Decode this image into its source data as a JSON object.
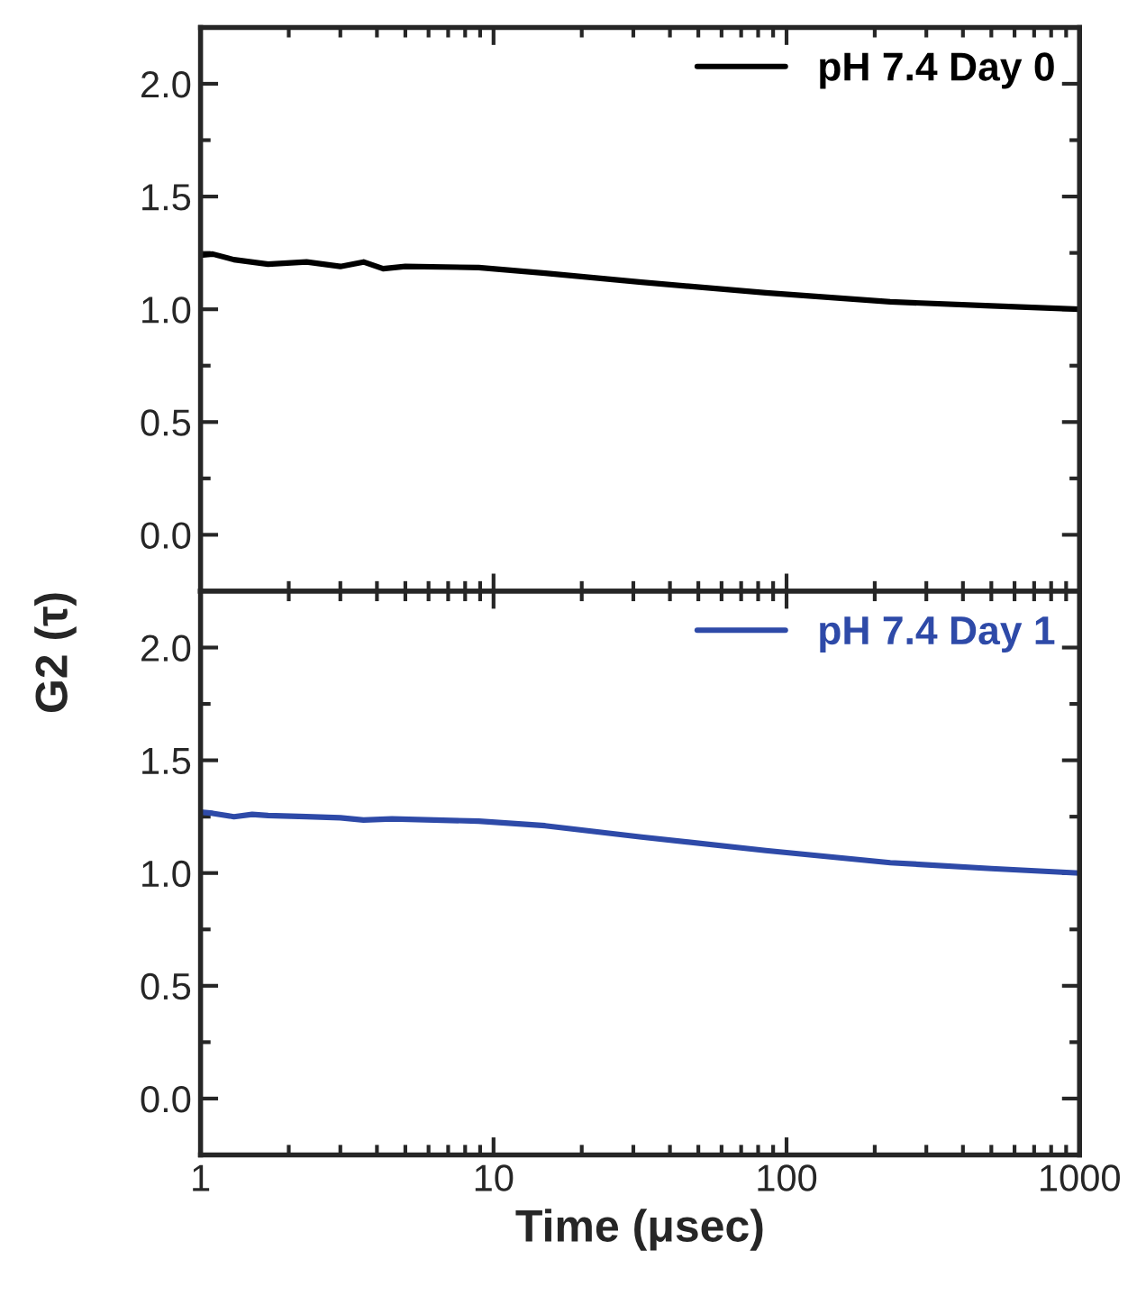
{
  "chart_data": [
    {
      "type": "line",
      "ylabel": "G2 (τ)",
      "log": "x",
      "xlim": [
        1,
        1000
      ],
      "xticks": [
        1,
        10,
        100,
        1000
      ],
      "ylim": [
        -0.25,
        2.25
      ],
      "yticks": [
        {
          "value": 0,
          "label": "0.0"
        },
        {
          "value": 0.5,
          "label": "0.5"
        },
        {
          "value": 1,
          "label": "1.0"
        },
        {
          "value": 1.5,
          "label": "1.5"
        },
        {
          "value": 2,
          "label": "2.0"
        }
      ],
      "tick_labels": "y",
      "legend": "top right",
      "grid": false,
      "series": [
        {
          "name": "pH 7.4 Day 0",
          "color": "#000000",
          "x": [
            1,
            1.1,
            1.3,
            1.7,
            2.3,
            3,
            3.6,
            4.2,
            5,
            8.9,
            15,
            32,
            85,
            226,
            500,
            1000
          ],
          "values": [
            1.24,
            1.245,
            1.22,
            1.2,
            1.21,
            1.19,
            1.21,
            1.18,
            1.19,
            1.185,
            1.16,
            1.12,
            1.073,
            1.033,
            1.015,
            1.0
          ]
        }
      ]
    },
    {
      "type": "line",
      "xlabel": "Time (μsec)",
      "log": "x",
      "xlim": [
        1,
        1000
      ],
      "xticks": [
        1,
        10,
        100,
        1000
      ],
      "ylim": [
        -0.25,
        2.25
      ],
      "yticks": [
        {
          "value": 0,
          "label": "0.0"
        },
        {
          "value": 0.5,
          "label": "0.5"
        },
        {
          "value": 1,
          "label": "1.0"
        },
        {
          "value": 1.5,
          "label": "1.5"
        },
        {
          "value": 2,
          "label": "2.0"
        }
      ],
      "legend": "top right",
      "grid": false,
      "series": [
        {
          "name": "pH 7.4 Day 1",
          "color": "#2e4aa8",
          "x": [
            1,
            1.1,
            1.3,
            1.5,
            1.7,
            2.3,
            3,
            3.6,
            4.5,
            8.9,
            15,
            32,
            85,
            226,
            500,
            1000
          ],
          "values": [
            1.27,
            1.265,
            1.25,
            1.26,
            1.255,
            1.25,
            1.245,
            1.235,
            1.24,
            1.23,
            1.21,
            1.16,
            1.1,
            1.046,
            1.02,
            1.0
          ]
        }
      ]
    }
  ]
}
